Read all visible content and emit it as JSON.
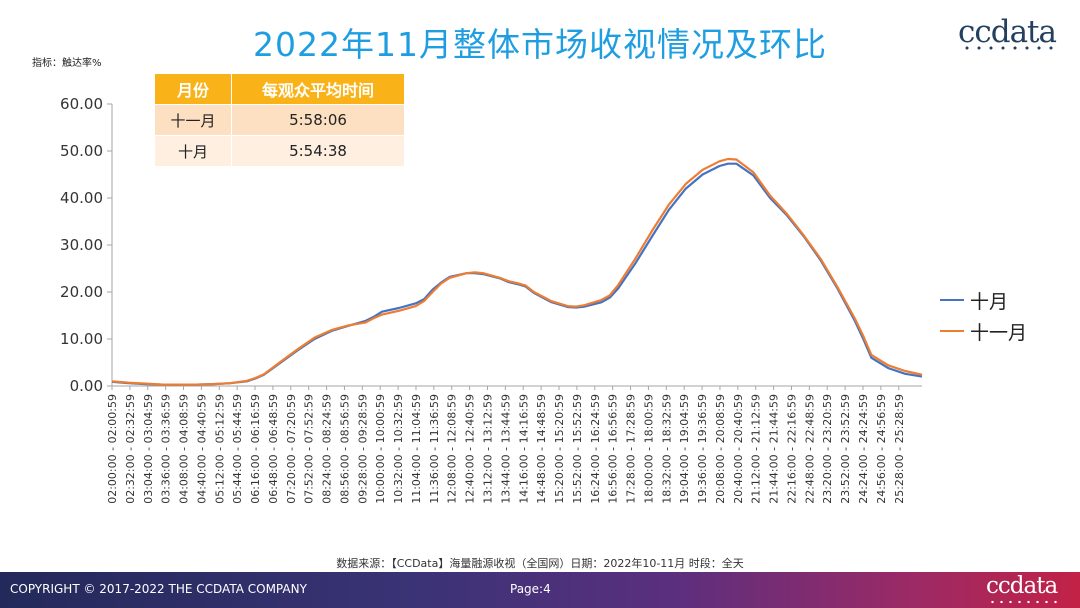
{
  "page": {
    "title": "2022年11月整体市场收视情况及环比",
    "brand": "ccdata",
    "metric_label": "指标：触达率%",
    "source": "数据来源：【CCData】海量融源收视（全国网）日期：2022年10-11月 时段：全天",
    "footer_copyright": "COPYRIGHT © 2017-2022 THE CCDATA COMPANY",
    "footer_page": "Page:4"
  },
  "avg_table": {
    "headers": [
      "月份",
      "每观众平均时间"
    ],
    "rows": [
      {
        "month": "十一月",
        "time": "5:58:06"
      },
      {
        "month": "十月",
        "time": "5:54:38"
      }
    ]
  },
  "colors": {
    "oct": "#4472c4",
    "nov": "#ed7d31",
    "accent": "#1e9ee0",
    "header": "#f9b218"
  },
  "chart_data": {
    "type": "line",
    "title": "2022年11月整体市场收视情况及环比",
    "ylabel": "指标：触达率%",
    "ylim": [
      0,
      60
    ],
    "yticks": [
      "0.00",
      "10.00",
      "20.00",
      "30.00",
      "40.00",
      "50.00",
      "60.00"
    ],
    "legend_position": "right",
    "x_tick_labels": [
      "02:00:00 - 02:00:59",
      "02:32:00 - 02:32:59",
      "03:04:00 - 03:04:59",
      "03:36:00 - 03:36:59",
      "04:08:00 - 04:08:59",
      "04:40:00 - 04:40:59",
      "05:12:00 - 05:12:59",
      "05:44:00 - 05:44:59",
      "06:16:00 - 06:16:59",
      "06:48:00 - 06:48:59",
      "07:20:00 - 07:20:59",
      "07:52:00 - 07:52:59",
      "08:24:00 - 08:24:59",
      "08:56:00 - 08:56:59",
      "09:28:00 - 09:28:59",
      "10:00:00 - 10:00:59",
      "10:32:00 - 10:32:59",
      "11:04:00 - 11:04:59",
      "11:36:00 - 11:36:59",
      "12:08:00 - 12:08:59",
      "12:40:00 - 12:40:59",
      "13:12:00 - 13:12:59",
      "13:44:00 - 13:44:59",
      "14:16:00 - 14:16:59",
      "14:48:00 - 14:48:59",
      "15:20:00 - 15:20:59",
      "15:52:00 - 15:52:59",
      "16:24:00 - 16:24:59",
      "16:56:00 - 16:56:59",
      "17:28:00 - 17:28:59",
      "18:00:00 - 18:00:59",
      "18:32:00 - 18:32:59",
      "19:04:00 - 19:04:59",
      "19:36:00 - 19:36:59",
      "20:08:00 - 20:08:59",
      "20:40:00 - 20:40:59",
      "21:12:00 - 21:12:59",
      "21:44:00 - 21:44:59",
      "22:16:00 - 22:16:59",
      "22:48:00 - 22:48:59",
      "23:20:00 - 23:20:59",
      "23:52:00 - 23:52:59",
      "24:24:00 - 24:24:59",
      "24:56:00 - 24:56:59",
      "25:28:00 - 25:28:59"
    ],
    "x_span": [
      0,
      45.3
    ],
    "series": [
      {
        "name": "十月",
        "color": "#4472c4",
        "points": [
          [
            0,
            0.9
          ],
          [
            1,
            0.6
          ],
          [
            2,
            0.4
          ],
          [
            3,
            0.3
          ],
          [
            4,
            0.3
          ],
          [
            5,
            0.3
          ],
          [
            6,
            0.4
          ],
          [
            7,
            0.6
          ],
          [
            8,
            1.0
          ],
          [
            8.5,
            1.6
          ],
          [
            9,
            2.4
          ],
          [
            10,
            5.0
          ],
          [
            11,
            7.6
          ],
          [
            12,
            10.0
          ],
          [
            13,
            11.7
          ],
          [
            14,
            12.8
          ],
          [
            15,
            13.8
          ],
          [
            15.5,
            14.7
          ],
          [
            16,
            15.8
          ],
          [
            17,
            16.6
          ],
          [
            18,
            17.6
          ],
          [
            18.5,
            18.5
          ],
          [
            19,
            20.5
          ],
          [
            19.5,
            22.0
          ],
          [
            20,
            23.2
          ],
          [
            21,
            24.0
          ],
          [
            21.5,
            24.0
          ],
          [
            22,
            23.8
          ],
          [
            23,
            22.9
          ],
          [
            23.5,
            22.1
          ],
          [
            24,
            21.7
          ],
          [
            24.5,
            21.2
          ],
          [
            25,
            19.8
          ],
          [
            26,
            17.9
          ],
          [
            27,
            16.8
          ],
          [
            27.5,
            16.7
          ],
          [
            28,
            16.9
          ],
          [
            29,
            17.8
          ],
          [
            29.5,
            18.8
          ],
          [
            30,
            20.8
          ],
          [
            31,
            26.0
          ],
          [
            32,
            31.8
          ],
          [
            33,
            37.5
          ],
          [
            34,
            42.0
          ],
          [
            35,
            45.0
          ],
          [
            36,
            46.8
          ],
          [
            36.5,
            47.3
          ],
          [
            37,
            47.3
          ],
          [
            38,
            44.8
          ],
          [
            39,
            40.0
          ],
          [
            40,
            36.3
          ],
          [
            41,
            31.8
          ],
          [
            42,
            26.7
          ],
          [
            43,
            20.7
          ],
          [
            44,
            14.0
          ],
          [
            44.5,
            10.2
          ],
          [
            45,
            6.0
          ],
          [
            46,
            3.8
          ],
          [
            47,
            2.6
          ],
          [
            48,
            2.0
          ]
        ]
      },
      {
        "name": "十一月",
        "color": "#ed7d31",
        "points": [
          [
            0,
            1.0
          ],
          [
            1,
            0.7
          ],
          [
            2,
            0.5
          ],
          [
            3,
            0.3
          ],
          [
            4,
            0.3
          ],
          [
            5,
            0.3
          ],
          [
            6,
            0.4
          ],
          [
            7,
            0.6
          ],
          [
            8,
            1.1
          ],
          [
            8.5,
            1.7
          ],
          [
            9,
            2.5
          ],
          [
            10,
            5.2
          ],
          [
            11,
            7.8
          ],
          [
            12,
            10.3
          ],
          [
            13,
            11.9
          ],
          [
            14,
            12.9
          ],
          [
            15,
            13.5
          ],
          [
            15.5,
            14.4
          ],
          [
            16,
            15.2
          ],
          [
            17,
            16.0
          ],
          [
            18,
            17.0
          ],
          [
            18.5,
            18.1
          ],
          [
            19,
            20.0
          ],
          [
            19.5,
            21.8
          ],
          [
            20,
            23.0
          ],
          [
            21,
            24.0
          ],
          [
            21.5,
            24.2
          ],
          [
            22,
            24.0
          ],
          [
            23,
            23.0
          ],
          [
            23.5,
            22.3
          ],
          [
            24,
            21.9
          ],
          [
            24.5,
            21.4
          ],
          [
            25,
            20.0
          ],
          [
            26,
            18.1
          ],
          [
            27,
            17.0
          ],
          [
            27.5,
            16.9
          ],
          [
            28,
            17.2
          ],
          [
            29,
            18.3
          ],
          [
            29.5,
            19.3
          ],
          [
            30,
            21.5
          ],
          [
            31,
            27.0
          ],
          [
            32,
            33.0
          ],
          [
            33,
            38.6
          ],
          [
            34,
            43.0
          ],
          [
            35,
            46.0
          ],
          [
            36,
            47.8
          ],
          [
            36.5,
            48.3
          ],
          [
            37,
            48.2
          ],
          [
            38,
            45.5
          ],
          [
            39,
            40.5
          ],
          [
            40,
            36.6
          ],
          [
            41,
            32.0
          ],
          [
            42,
            27.0
          ],
          [
            43,
            21.0
          ],
          [
            44,
            14.5
          ],
          [
            44.5,
            10.8
          ],
          [
            45,
            6.6
          ],
          [
            46,
            4.4
          ],
          [
            47,
            3.2
          ],
          [
            48,
            2.4
          ]
        ]
      }
    ]
  }
}
